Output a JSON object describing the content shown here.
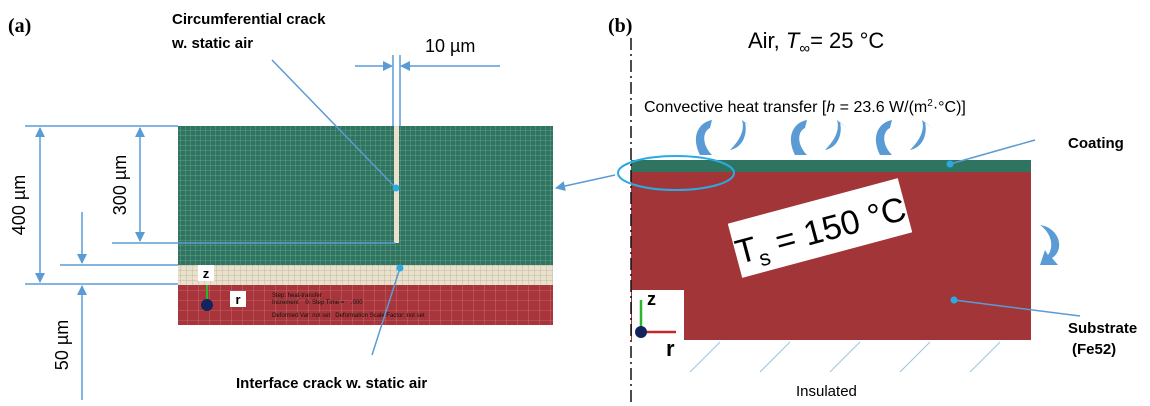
{
  "panel_a": {
    "label": "(a)",
    "crack_top": {
      "line1": "Circumferential crack",
      "line2": "w. static air"
    },
    "gap": "10 µm",
    "height_total": "400 µm",
    "height_coating": "300 µm",
    "height_interface": "50 µm",
    "axis_z": "z",
    "axis_r": "r",
    "status": [
      "Step: heat-transfer",
      "Increment    0: Step Time =    .000",
      "Deformed Var: not set   Deformation Scale Factor: not set"
    ],
    "crack_bottom": "Interface crack w. static air"
  },
  "panel_b": {
    "label": "(b)",
    "ambient": {
      "prefix": "Air, ",
      "symbol": "T",
      "subscript": "∞",
      "value": "= 25 °C"
    },
    "convection": {
      "prefix": "Convective heat transfer [",
      "symbol": "h",
      "value": " = 23.6 W/(m",
      "sup": "2",
      "suffix": "·°C)]"
    },
    "coating": "Coating",
    "surface_temp": {
      "symbol": "T",
      "subscript": "s",
      "value": " = 150 °C"
    },
    "substrate": {
      "line1": "Substrate",
      "line2": "(Fe52)"
    },
    "axis_z": "z",
    "axis_r": "r",
    "bottom": "Insulated"
  }
}
